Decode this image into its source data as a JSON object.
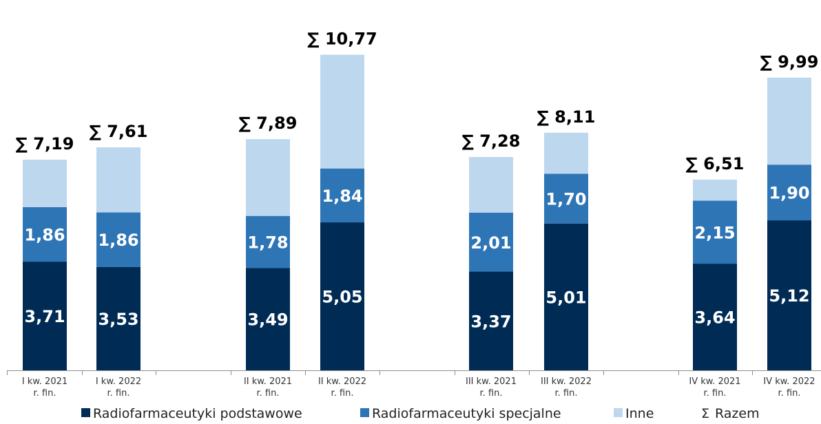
{
  "chart_data": {
    "type": "bar",
    "stacked": true,
    "title": "",
    "xlabel": "",
    "ylabel": "",
    "ylim": [
      0,
      11.7
    ],
    "grid": false,
    "legend_position": "bottom",
    "categories": [
      [
        "I kw. 2021",
        "r. fin."
      ],
      [
        "I kw. 2022",
        "r. fin."
      ],
      [
        "II kw. 2021",
        "r. fin."
      ],
      [
        "II kw. 2022",
        "r. fin."
      ],
      [
        "III kw. 2021",
        "r. fin."
      ],
      [
        "III kw. 2022",
        "r. fin."
      ],
      [
        "IV kw. 2021",
        "r. fin."
      ],
      [
        "IV kw. 2022",
        "r. fin."
      ]
    ],
    "series": [
      {
        "name": "Radiofarmaceutyki podstawowe",
        "color": "#002B54",
        "values": [
          3.71,
          3.53,
          3.49,
          5.05,
          3.37,
          5.01,
          3.64,
          5.12
        ],
        "labels": [
          "3,71",
          "3,53",
          "3,49",
          "5,05",
          "3,37",
          "5,01",
          "3,64",
          "5,12"
        ]
      },
      {
        "name": "Radiofarmaceutyki specjalne",
        "color": "#2E75B6",
        "values": [
          1.86,
          1.86,
          1.78,
          1.84,
          2.01,
          1.7,
          2.15,
          1.9
        ],
        "labels": [
          "1,86",
          "1,86",
          "1,78",
          "1,84",
          "2,01",
          "1,70",
          "2,15",
          "1,90"
        ]
      },
      {
        "name": "Inne",
        "color": "#BDD7EE",
        "values": [
          1.62,
          2.22,
          2.62,
          3.88,
          1.9,
          1.4,
          0.72,
          2.97
        ],
        "labels": []
      }
    ],
    "totals": {
      "name": "Razem",
      "symbol": "Σ",
      "values": [
        7.19,
        7.61,
        7.89,
        10.77,
        7.28,
        8.11,
        6.51,
        9.99
      ],
      "labels": [
        "∑ 7,19",
        "∑ 7,61",
        "∑ 7,89",
        "∑ 10,77",
        "∑ 7,28",
        "∑ 8,11",
        "∑ 6,51",
        "∑ 9,99"
      ]
    }
  }
}
